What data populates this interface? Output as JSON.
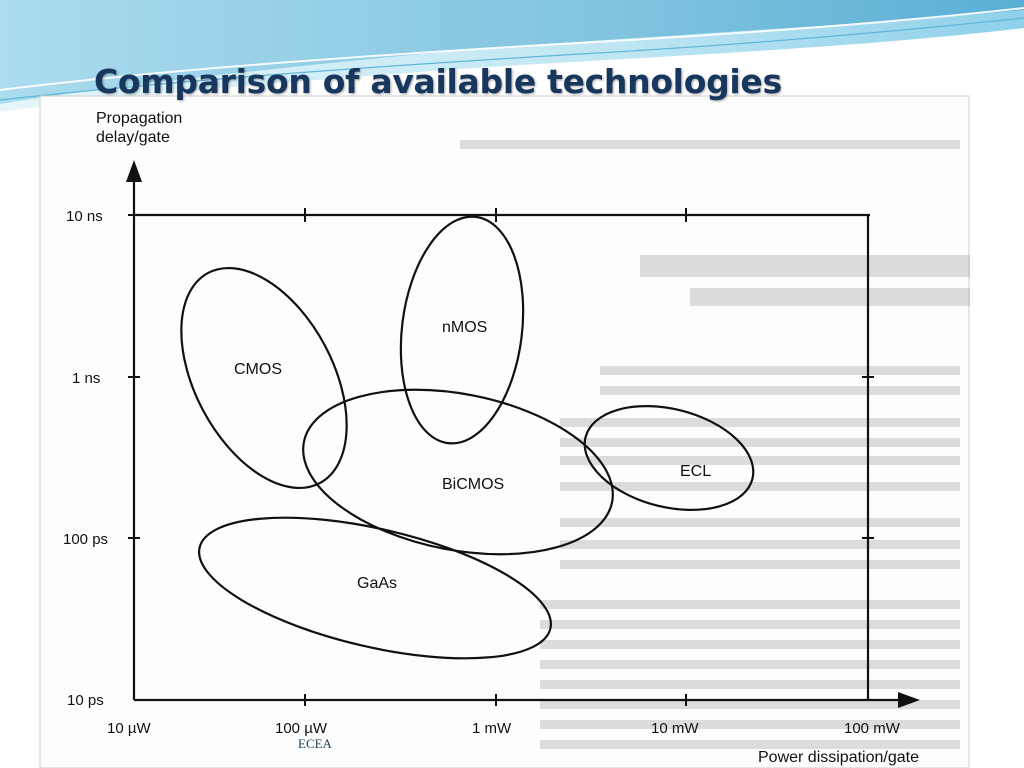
{
  "slide": {
    "title": "Comparison of available technologies",
    "footer": "ECEA"
  },
  "diagram": {
    "y_axis_label": [
      "Propagation",
      "delay/gate"
    ],
    "x_axis_label": "Power dissipation/gate",
    "y_ticks": [
      "10 ns",
      "1 ns",
      "100 ps",
      "10 ps"
    ],
    "x_ticks": [
      "10 µW",
      "100 µW",
      "1 mW",
      "10 mW",
      "100 mW"
    ],
    "regions": [
      {
        "name": "CMOS"
      },
      {
        "name": "nMOS"
      },
      {
        "name": "BiCMOS"
      },
      {
        "name": "ECL"
      },
      {
        "name": "GaAs"
      }
    ]
  },
  "colors": {
    "title": "#17375e",
    "header_wave_light": "#bfe6f3",
    "header_wave_dark": "#3fa6cf",
    "ink": "#111111",
    "background_text": "#8a8a8a"
  }
}
